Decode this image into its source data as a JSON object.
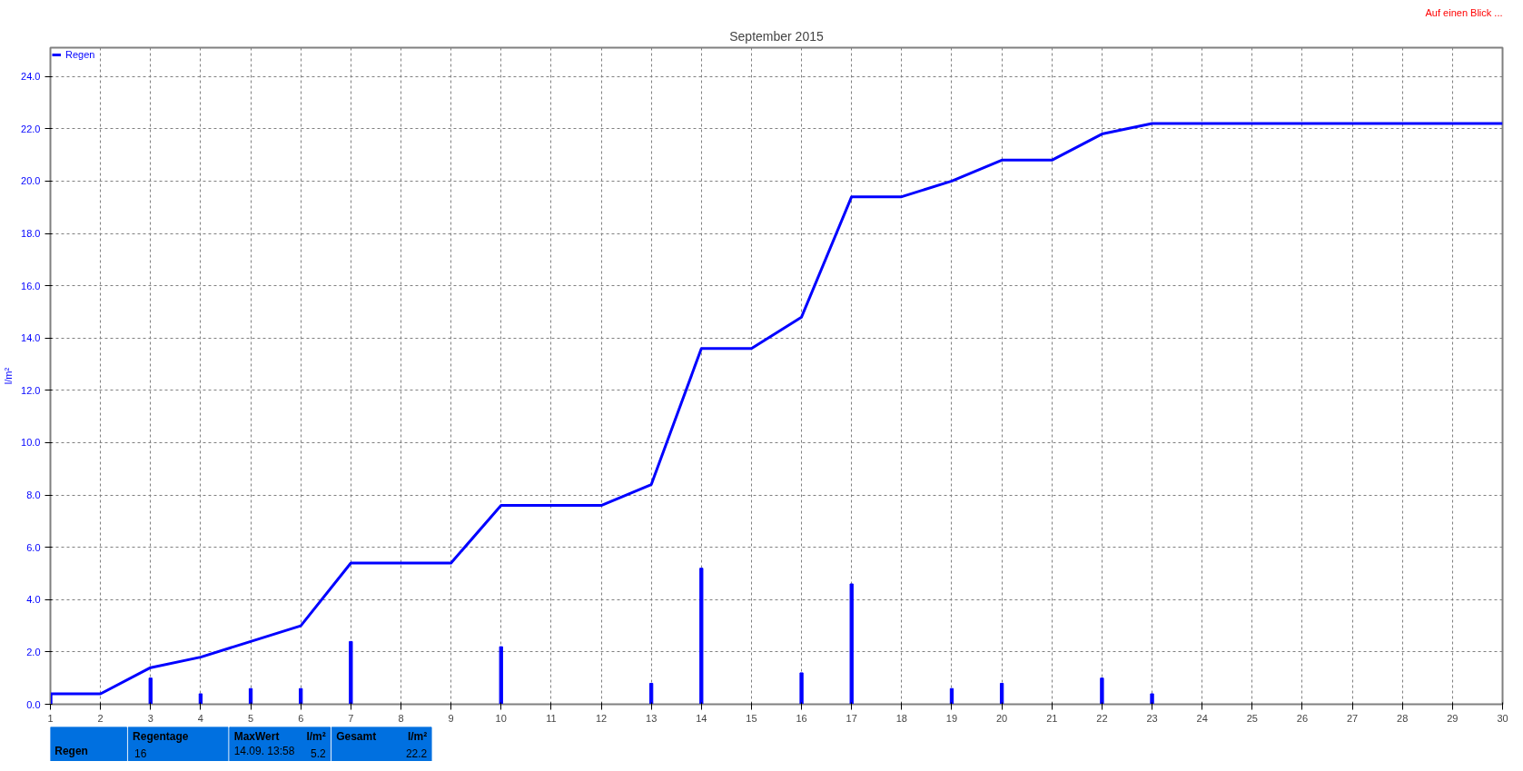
{
  "chart_data": {
    "type": "line",
    "title": "September 2015",
    "ylabel": "l/m²",
    "x": [
      1,
      2,
      3,
      4,
      5,
      6,
      7,
      8,
      9,
      10,
      11,
      12,
      13,
      14,
      15,
      16,
      17,
      18,
      19,
      20,
      21,
      22,
      23,
      24,
      25,
      26,
      27,
      28,
      29,
      30
    ],
    "series": [
      {
        "name": "Regen",
        "color": "#0000ff",
        "values": [
          0.4,
          0.4,
          1.4,
          1.8,
          2.4,
          3.0,
          5.4,
          5.4,
          5.4,
          7.6,
          7.6,
          7.6,
          8.4,
          13.6,
          13.6,
          14.8,
          19.4,
          19.4,
          20.0,
          20.8,
          20.8,
          21.8,
          22.2,
          22.2,
          22.2,
          22.2,
          22.2,
          22.2,
          22.2,
          22.2
        ]
      },
      {
        "type": "bar",
        "color": "#0000ff",
        "x": [
          1,
          3,
          4,
          5,
          6,
          7,
          10,
          13,
          14,
          16,
          17,
          19,
          20,
          22,
          23
        ],
        "values": [
          0.4,
          1.0,
          0.4,
          0.6,
          0.6,
          2.4,
          2.2,
          0.8,
          5.2,
          1.2,
          4.6,
          0.6,
          0.8,
          1.0,
          0.4
        ]
      }
    ],
    "xlim": [
      1,
      30
    ],
    "xticks": [
      1,
      2,
      3,
      4,
      5,
      6,
      7,
      8,
      9,
      10,
      11,
      12,
      13,
      14,
      15,
      16,
      17,
      18,
      19,
      20,
      21,
      22,
      23,
      24,
      25,
      26,
      27,
      28,
      29,
      30
    ],
    "ylim": [
      0,
      25.1
    ],
    "yticks": [
      {
        "value": 0,
        "label": "0.0"
      },
      {
        "value": 2,
        "label": "2.0"
      },
      {
        "value": 4,
        "label": "4.0"
      },
      {
        "value": 6,
        "label": "6.0"
      },
      {
        "value": 8,
        "label": "8.0"
      },
      {
        "value": 10,
        "label": "10.0"
      },
      {
        "value": 12,
        "label": "12.0"
      },
      {
        "value": 14,
        "label": "14.0"
      },
      {
        "value": 16,
        "label": "16.0"
      },
      {
        "value": 18,
        "label": "18.0"
      },
      {
        "value": 20,
        "label": "20.0"
      },
      {
        "value": 22,
        "label": "22.0"
      },
      {
        "value": 24,
        "label": "24.0"
      }
    ],
    "grid": true,
    "legend": "top left",
    "line_style": "solid",
    "marker": "none",
    "annotations": [
      "Auf einen Blick ...",
      "Regen",
      "Regentage",
      "16",
      "MaxWert",
      "l/m²",
      "14.09.  13:58",
      "5.2",
      "Gesamt",
      "l/m²",
      "22.2"
    ]
  }
}
